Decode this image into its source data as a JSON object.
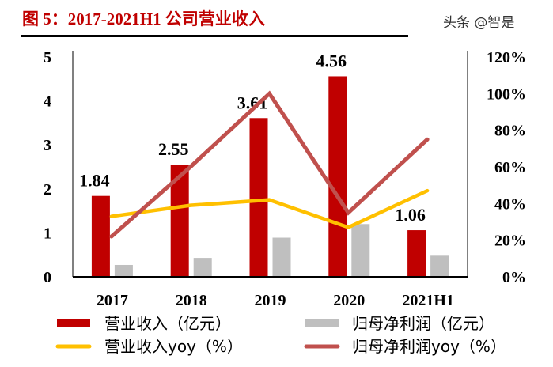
{
  "title": "图 5：2017-2021H1 公司营业收入",
  "watermark": "头条 @智是",
  "chart_data": {
    "type": "bar",
    "categories": [
      "2017",
      "2018",
      "2019",
      "2020",
      "2021H1"
    ],
    "left_axis": {
      "ylim": [
        0,
        5
      ],
      "ticks": [
        "0",
        "1",
        "2",
        "3",
        "4",
        "5"
      ]
    },
    "right_axis": {
      "ylim": [
        0,
        120
      ],
      "ticks": [
        "0%",
        "20%",
        "40%",
        "60%",
        "80%",
        "100%",
        "120%"
      ]
    },
    "series": [
      {
        "name": "营业收入（亿元）",
        "type": "bar",
        "axis": "left",
        "color": "#c00000",
        "values": [
          1.84,
          2.55,
          3.61,
          4.56,
          1.06
        ],
        "labels": [
          "1.84",
          "2.55",
          "3.61",
          "4.56",
          "1.06"
        ]
      },
      {
        "name": "归母净利润（亿元）",
        "type": "bar",
        "axis": "left",
        "color": "#bfbfbf",
        "values": [
          0.27,
          0.43,
          0.89,
          1.2,
          0.48
        ]
      },
      {
        "name": "营业收入yoy（%）",
        "type": "line",
        "axis": "right",
        "color": "#ffc000",
        "values": [
          33,
          39,
          42,
          27,
          47
        ]
      },
      {
        "name": "归母净利润yoy（%）",
        "type": "line",
        "axis": "right",
        "color": "#c0504d",
        "values": [
          22,
          60,
          100,
          35,
          75
        ]
      }
    ],
    "legend": "bottom"
  }
}
